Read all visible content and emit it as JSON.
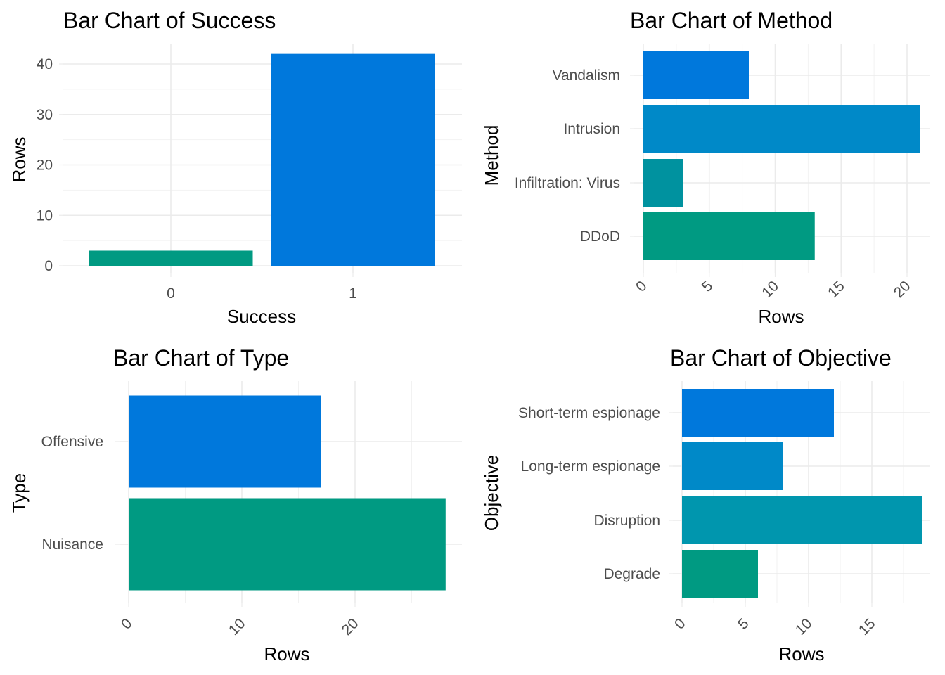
{
  "chart_data": [
    {
      "id": "success",
      "type": "bar",
      "orientation": "vertical",
      "title": "Bar Chart of Success",
      "xlabel": "Success",
      "ylabel": "Rows",
      "categories": [
        "0",
        "1"
      ],
      "values": [
        3,
        42
      ],
      "colors": [
        "#009a82",
        "#0078dc"
      ],
      "ylim": [
        0,
        44
      ],
      "ticks": [
        0,
        10,
        20,
        30,
        40
      ],
      "grid": true
    },
    {
      "id": "method",
      "type": "bar",
      "orientation": "horizontal",
      "title": "Bar Chart of Method",
      "xlabel": "Rows",
      "ylabel": "Method",
      "categories": [
        "DDoD",
        "Infiltration: Virus",
        "Intrusion",
        "Vandalism"
      ],
      "values": [
        13,
        3,
        21,
        8
      ],
      "colors": [
        "#009a82",
        "#00929f",
        "#0089c8",
        "#0078dc"
      ],
      "xlim": [
        0,
        21
      ],
      "ticks": [
        0,
        5,
        10,
        15,
        20
      ],
      "grid": true
    },
    {
      "id": "type",
      "type": "bar",
      "orientation": "horizontal",
      "title": "Bar Chart of Type",
      "xlabel": "Rows",
      "ylabel": "Type",
      "categories": [
        "Nuisance",
        "Offensive"
      ],
      "values": [
        28,
        17
      ],
      "colors": [
        "#009a82",
        "#0078dc"
      ],
      "xlim": [
        0,
        28
      ],
      "ticks": [
        0,
        10,
        20
      ],
      "grid": true
    },
    {
      "id": "objective",
      "type": "bar",
      "orientation": "horizontal",
      "title": "Bar Chart of Objective",
      "xlabel": "Rows",
      "ylabel": "Objective",
      "categories": [
        "Degrade",
        "Disruption",
        "Long-term espionage",
        "Short-term espionage"
      ],
      "values": [
        6,
        19,
        8,
        12
      ],
      "colors": [
        "#009a82",
        "#0096ae",
        "#0089c8",
        "#0078dc"
      ],
      "xlim": [
        0,
        19
      ],
      "ticks": [
        0,
        5,
        10,
        15
      ],
      "grid": true
    }
  ]
}
